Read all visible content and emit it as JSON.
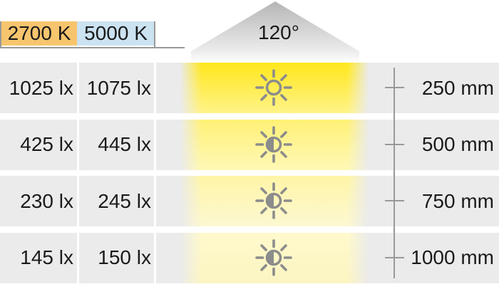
{
  "title_boxes": [
    {
      "label": "2700 K",
      "bg": "#f7c56e"
    },
    {
      "label": "5000 K",
      "bg": "#cbe2f1"
    }
  ],
  "beam_angle": "120°",
  "rows": [
    {
      "lux_2700k": "1025 lx",
      "lux_5000k": "1075 lx",
      "distance": "250 mm",
      "icon": "sun-outline-icon",
      "beam_top": "#ffe71c",
      "beam_bottom": "#fff388"
    },
    {
      "lux_2700k": "425 lx",
      "lux_5000k": "445 lx",
      "distance": "500 mm",
      "icon": "sun-half-icon",
      "beam_top": "#fff176",
      "beam_bottom": "#fff8b6"
    },
    {
      "lux_2700k": "230 lx",
      "lux_5000k": "245 lx",
      "distance": "750 mm",
      "icon": "sun-half-icon",
      "beam_top": "#fff5a6",
      "beam_bottom": "#fcf8d2"
    },
    {
      "lux_2700k": "145 lx",
      "lux_5000k": "150 lx",
      "distance": "1000 mm",
      "icon": "sun-half-icon",
      "beam_top": "#fff9cc",
      "beam_bottom": "#fbf5c2"
    }
  ],
  "colors": {
    "row_bg": "#ebebeb",
    "text": "#1a1a1a",
    "line": "#999999",
    "icon": "#8c8c8c",
    "triangle_top": "#b5b5b5"
  }
}
